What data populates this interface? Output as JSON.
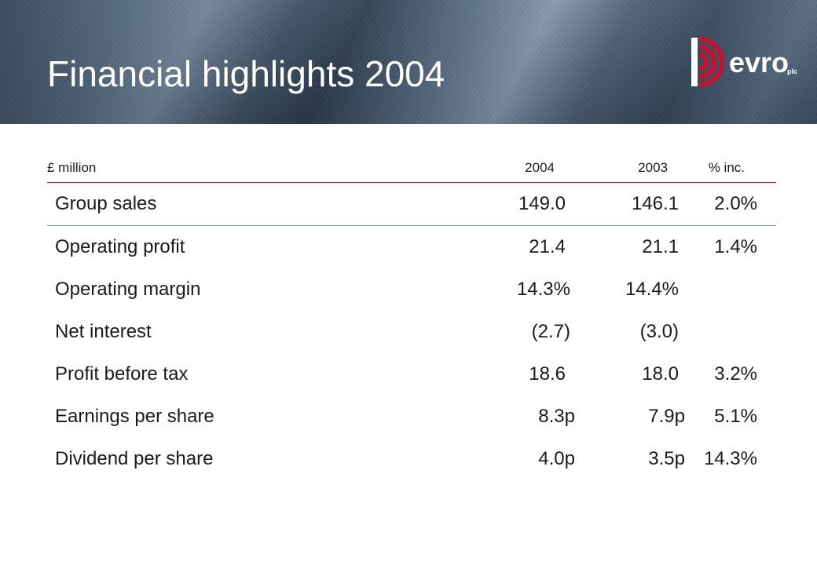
{
  "header": {
    "title": "Financial highlights 2004"
  },
  "logo": {
    "icon": "devro-logo-icon",
    "text": "evro",
    "suffix": "plc",
    "colors": {
      "red": "#c8102e",
      "white": "#ffffff"
    }
  },
  "table": {
    "columns": {
      "unit": "£ million",
      "year_current": "2004",
      "year_previous": "2003",
      "change": "% inc."
    },
    "rows": [
      {
        "label": "Group sales",
        "current": "149.0",
        "previous": "146.1",
        "change": "2.0%"
      },
      {
        "label": "Operating profit",
        "current": "21.4",
        "previous": "21.1",
        "change": "1.4%"
      },
      {
        "label": "Operating margin",
        "current": "14.3%",
        "previous": "14.4%",
        "change": ""
      },
      {
        "label": "Net interest",
        "current": "(2.7)",
        "previous": "(3.0)",
        "change": ""
      },
      {
        "label": "Profit before tax",
        "current": "18.6",
        "previous": "18.0",
        "change": "3.2%"
      },
      {
        "label": "Earnings per share",
        "current": "8.3p",
        "previous": "7.9p",
        "change": "5.1%"
      },
      {
        "label": "Dividend per share",
        "current": "4.0p",
        "previous": "3.5p",
        "change": "14.3%"
      }
    ],
    "rule_colors": {
      "top": "#c8102e",
      "under_first_row": "#6d9bc3"
    }
  }
}
